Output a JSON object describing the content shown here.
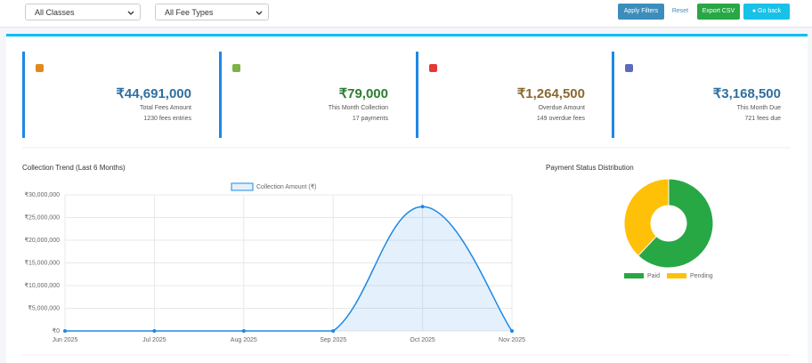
{
  "filters": [
    "All Classes",
    "All Fee Types"
  ],
  "buttons": [
    "Apply Filters",
    "Reset",
    "Export CSV",
    "Go back"
  ],
  "cards": [
    {
      "amount": "₹44,691,000",
      "label": "Total Fees Amount",
      "detail": "1230 fees entries"
    },
    {
      "amount": "₹79,000",
      "label": "This Month Collection",
      "detail": "17 payments"
    },
    {
      "amount": "₹1,264,500",
      "label": "Overdue Amount",
      "detail": "149 overdue fees"
    },
    {
      "amount": "₹3,168,500",
      "label": "This Month Due",
      "detail": "721 fees due"
    }
  ],
  "chart_data": [
    {
      "type": "line",
      "title": "Collection Trend (Last 6 Months)",
      "categories": [
        "Jun 2025",
        "Jul 2025",
        "Aug 2025",
        "Sep 2025",
        "Oct 2025",
        "Nov 2025"
      ],
      "series": [
        {
          "name": "Collection Amount (₹)",
          "color": "#1e88e5",
          "values": [
            0,
            0,
            0,
            0,
            27400000,
            0
          ]
        }
      ],
      "ylim": [
        0,
        30000000
      ],
      "yticks": [
        {
          "value": 0,
          "label": "₹0"
        },
        {
          "value": 5000000,
          "label": "₹5,000,000"
        },
        {
          "value": 10000000,
          "label": "₹10,000,000"
        },
        {
          "value": 15000000,
          "label": "₹15,000,000"
        },
        {
          "value": 20000000,
          "label": "₹20,000,000"
        },
        {
          "value": 25000000,
          "label": "₹25,000,000"
        },
        {
          "value": 30000000,
          "label": "₹30,000,000"
        }
      ],
      "grid": true
    },
    {
      "type": "doughnut",
      "title": "Payment Status Distribution",
      "categories": [
        "Paid",
        "Pending"
      ],
      "values": [
        62,
        38
      ],
      "colors": [
        "#28a745",
        "#ffc107"
      ]
    }
  ]
}
